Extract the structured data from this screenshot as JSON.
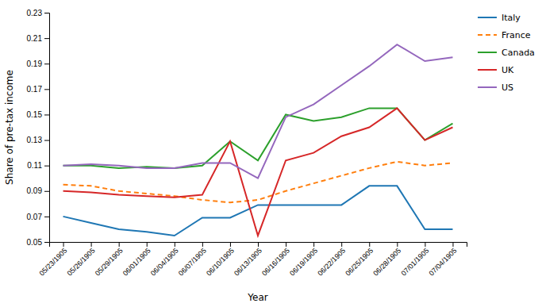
{
  "chart_data": {
    "type": "line",
    "xlabel": "Year",
    "ylabel": "Share of pre-tax income",
    "categories": [
      "05/23/1905",
      "05/26/1905",
      "05/29/1905",
      "06/01/1905",
      "06/04/1905",
      "06/07/1905",
      "06/10/1905",
      "06/13/1905",
      "06/16/1905",
      "06/19/1905",
      "06/22/1905",
      "06/25/1905",
      "06/28/1905",
      "07/01/1905",
      "07/04/1905"
    ],
    "series": [
      {
        "name": "Italy",
        "line_style": "solid",
        "values": [
          0.07,
          0.065,
          0.06,
          0.058,
          0.055,
          0.069,
          0.069,
          0.079,
          0.079,
          0.079,
          0.079,
          0.094,
          0.094,
          0.06,
          0.06
        ]
      },
      {
        "name": "France",
        "line_style": "dashed",
        "values": [
          0.095,
          0.094,
          0.09,
          0.088,
          0.086,
          0.083,
          0.081,
          0.083,
          0.09,
          0.096,
          0.102,
          0.108,
          0.113,
          0.11,
          0.112
        ]
      },
      {
        "name": "Canada",
        "line_style": "solid",
        "values": [
          0.11,
          0.11,
          0.108,
          0.109,
          0.108,
          0.11,
          0.129,
          0.114,
          0.15,
          0.145,
          0.148,
          0.155,
          0.155,
          0.13,
          0.143
        ]
      },
      {
        "name": "UK",
        "line_style": "solid",
        "values": [
          0.09,
          0.089,
          0.087,
          0.086,
          0.085,
          0.087,
          0.129,
          0.055,
          0.114,
          0.12,
          0.133,
          0.14,
          0.155,
          0.13,
          0.14
        ]
      },
      {
        "name": "US",
        "line_style": "solid",
        "values": [
          0.11,
          0.111,
          0.11,
          0.108,
          0.108,
          0.112,
          0.112,
          0.1,
          0.148,
          0.158,
          0.173,
          0.188,
          0.205,
          0.192,
          0.195
        ]
      }
    ],
    "ylim": [
      0.05,
      0.23
    ],
    "yticks": [
      0.05,
      0.07,
      0.09,
      0.11,
      0.13,
      0.15,
      0.17,
      0.19,
      0.21,
      0.23
    ],
    "grid": false,
    "legend": "right"
  }
}
